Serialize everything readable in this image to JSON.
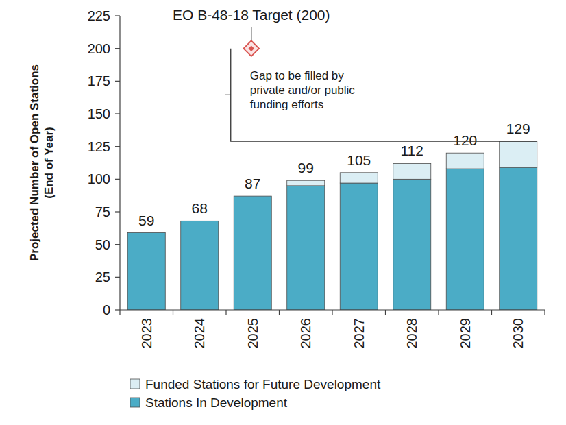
{
  "chart_data": {
    "type": "bar",
    "stacked": true,
    "ylabel": "Projected Number of Open Stations\n(End of Year)",
    "categories": [
      "2023",
      "2024",
      "2025",
      "2026",
      "2027",
      "2028",
      "2029",
      "2030"
    ],
    "series": [
      {
        "name": "Stations In Development",
        "color": "#4bacc6",
        "values": [
          59,
          68,
          87,
          95,
          97,
          100,
          108,
          109
        ]
      },
      {
        "name": "Funded Stations for Future Development",
        "color": "#dbeef4",
        "values": [
          0,
          0,
          0,
          4,
          8,
          12,
          12,
          20
        ]
      }
    ],
    "totals": [
      59,
      68,
      87,
      99,
      105,
      112,
      120,
      129
    ],
    "ylim": [
      0,
      225
    ],
    "yticks": [
      0,
      25,
      50,
      75,
      100,
      125,
      150,
      175,
      200,
      225
    ],
    "grid": false,
    "legend": "bottom",
    "target": {
      "label": "EO B-48-18 Target (200)",
      "value": 200,
      "category": "2025"
    },
    "gap_annotation": [
      "Gap to be filled by",
      "private and/or public",
      "funding efforts"
    ]
  }
}
